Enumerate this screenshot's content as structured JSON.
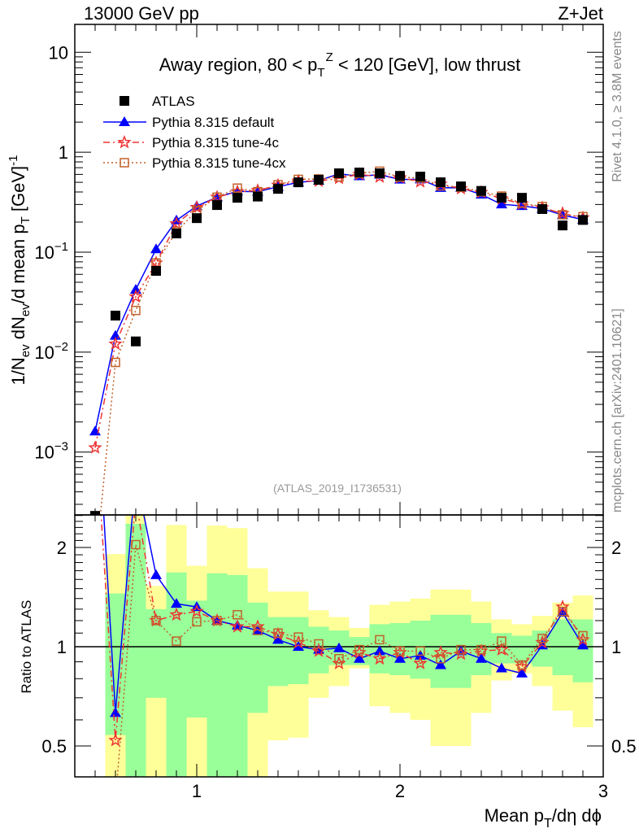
{
  "header": {
    "left": "13000 GeV pp",
    "right": "Z+Jet"
  },
  "side_text": {
    "rivet": "Rivet 4.1.0, ≥ 3.8M events",
    "mcplots": "mcplots.cern.ch [arXiv:2401.10621]"
  },
  "watermark": "(ATLAS_2019_I1736531)",
  "colors": {
    "data": "#000000",
    "default": "#0000ff",
    "tune4c": "#ee3333",
    "tune4cx": "#c0622a",
    "band_inner": "#99ff99",
    "band_outer": "#ffff99"
  },
  "chart_data": {
    "type": "scatter",
    "title": {
      "pre": "Away region, 80 < p",
      "sub": "T",
      "sup": "Z",
      "post": " < 120 [GeV], low thrust"
    },
    "xlabel": {
      "pre": "Mean p",
      "sub": "T",
      "post": "/dη dϕ"
    },
    "ylabel": {
      "a": "1/N",
      "a_sub": "ev",
      "b": " dN",
      "b_sub": "ev",
      "c": "/d mean p",
      "c_sub": "T",
      "d": " [GeV]",
      "d_sup": "-1"
    },
    "ratio_ylabel": "Ratio to ATLAS",
    "xlim": [
      0.4,
      3.0
    ],
    "ylim": [
      0.000235,
      19
    ],
    "yscale": "log",
    "ratio_ylim": [
      0.403,
      2.51
    ],
    "ratio_yscale": "log",
    "x_ticks": [
      "1",
      "2",
      "3"
    ],
    "y_ticks": [
      {
        "base": "10",
        "exp": ""
      },
      {
        "base": "1",
        "exp": ""
      },
      {
        "base": "10",
        "exp": "−1"
      },
      {
        "base": "10",
        "exp": "−2"
      },
      {
        "base": "10",
        "exp": "−3"
      }
    ],
    "ratio_ticks": [
      "2",
      "1",
      "0.5"
    ],
    "legend": {
      "position": "top-left",
      "entries": [
        "ATLAS",
        "Pythia 8.315 default",
        "Pythia 8.315 tune-4c",
        "Pythia 8.315 tune-4cx"
      ]
    },
    "x": [
      0.5,
      0.6,
      0.7,
      0.8,
      0.9,
      1.0,
      1.1,
      1.2,
      1.3,
      1.4,
      1.5,
      1.6,
      1.7,
      1.8,
      1.9,
      2.0,
      2.1,
      2.2,
      2.3,
      2.4,
      2.5,
      2.6,
      2.7,
      2.8,
      2.9
    ],
    "data": [
      0.00023,
      0.0232,
      0.0128,
      0.065,
      0.154,
      0.219,
      0.296,
      0.35,
      0.36,
      0.43,
      0.5,
      0.53,
      0.615,
      0.626,
      0.615,
      0.58,
      0.57,
      0.5,
      0.455,
      0.41,
      0.35,
      0.35,
      0.27,
      0.185,
      0.21
    ],
    "ratios": [
      {
        "name": "Pythia 8.315 default",
        "values": [
          7.0,
          0.63,
          3.3,
          1.65,
          1.35,
          1.32,
          1.2,
          1.16,
          1.12,
          1.05,
          1.0,
          0.98,
          0.99,
          0.92,
          0.97,
          0.92,
          0.94,
          0.88,
          0.97,
          0.92,
          0.86,
          0.83,
          1.01,
          1.27,
          1.01
        ]
      },
      {
        "name": "Pythia 8.315 tune-4c",
        "values": [
          4.8,
          0.52,
          2.8,
          1.2,
          1.25,
          1.28,
          1.2,
          1.15,
          1.15,
          1.09,
          1.03,
          0.97,
          0.89,
          0.96,
          0.92,
          0.96,
          0.89,
          0.96,
          0.95,
          0.97,
          0.98,
          0.87,
          1.03,
          1.32,
          1.05
        ]
      },
      {
        "name": "Pythia 8.315 tune-4cx",
        "values": [
          0.3,
          0.34,
          2.04,
          1.2,
          1.04,
          1.19,
          1.2,
          1.25,
          1.12,
          1.1,
          1.07,
          1.02,
          0.92,
          0.98,
          1.05,
          0.97,
          0.97,
          0.92,
          0.98,
          0.98,
          1.04,
          0.88,
          1.06,
          1.28,
          1.08
        ]
      }
    ],
    "band_inner": {
      "lo": [
        null,
        0.54,
        0.3,
        0.7,
        0.3,
        0.61,
        0.3,
        0.3,
        0.63,
        0.76,
        0.77,
        0.83,
        0.88,
        0.88,
        0.83,
        0.82,
        0.8,
        0.75,
        0.75,
        0.82,
        0.89,
        0.89,
        0.87,
        0.82,
        0.78
      ],
      "hi": [
        null,
        1.45,
        2.36,
        1.3,
        1.68,
        1.38,
        1.67,
        1.65,
        1.36,
        1.23,
        1.23,
        1.15,
        1.12,
        1.07,
        1.17,
        1.18,
        1.2,
        1.25,
        1.25,
        1.18,
        1.1,
        1.08,
        1.12,
        1.21,
        1.21
      ]
    },
    "band_outer": {
      "lo": [
        null,
        0.3,
        0.3,
        0.3,
        0.3,
        0.3,
        0.3,
        0.3,
        0.3,
        0.52,
        0.53,
        0.7,
        0.76,
        0.86,
        0.66,
        0.63,
        0.6,
        0.5,
        0.5,
        0.63,
        0.79,
        0.83,
        0.76,
        0.64,
        0.57
      ],
      "hi": [
        null,
        1.91,
        3.0,
        1.53,
        2.34,
        1.76,
        2.33,
        2.29,
        1.73,
        1.47,
        1.47,
        1.29,
        1.23,
        1.14,
        1.34,
        1.37,
        1.4,
        1.49,
        1.49,
        1.37,
        1.21,
        1.17,
        1.24,
        1.36,
        1.43
      ]
    }
  }
}
